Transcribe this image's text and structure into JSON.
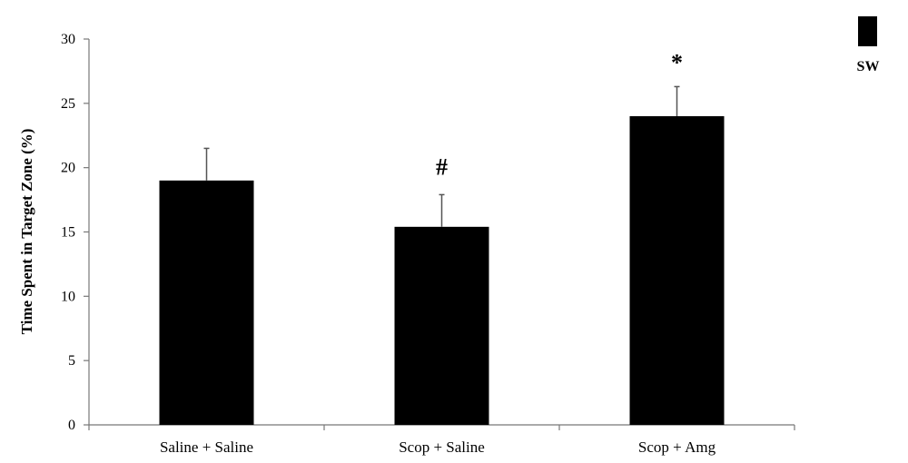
{
  "chart_data": {
    "type": "bar",
    "ylabel": "Time Spent in Target Zone (%)",
    "ylim": [
      0,
      30
    ],
    "yticks": [
      0,
      5,
      10,
      15,
      20,
      25,
      30
    ],
    "categories": [
      "Saline + Saline",
      "Scop + Saline",
      "Scop + Amg"
    ],
    "series": [
      {
        "name": "SW",
        "values": [
          19,
          15.4,
          24
        ],
        "errors": [
          2.5,
          2.5,
          2.3
        ],
        "annotations": [
          "",
          "#",
          "*"
        ],
        "color": "#000000"
      }
    ],
    "legend_position": "top-right",
    "grid": false
  }
}
